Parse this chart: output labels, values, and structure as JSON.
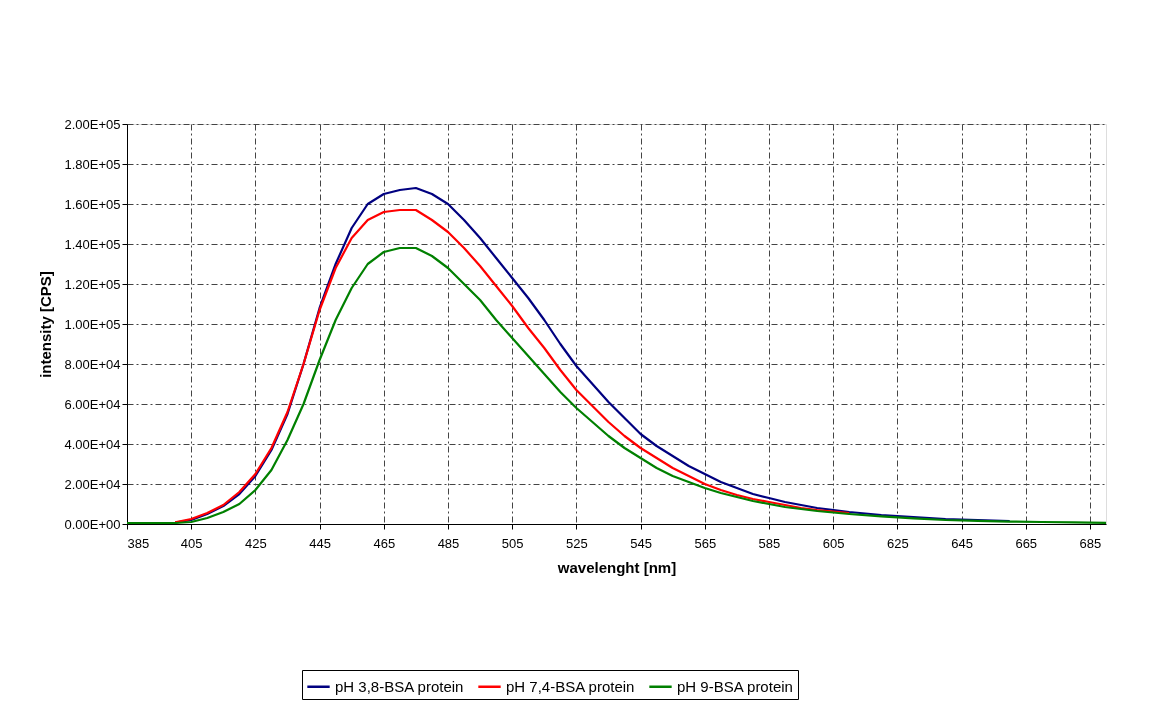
{
  "chart_data": {
    "type": "line",
    "xlabel": "wavelenght [nm]",
    "ylabel": "intensity [CPS]",
    "xlim": [
      385,
      690
    ],
    "xticks": [
      385,
      405,
      425,
      445,
      465,
      485,
      505,
      525,
      545,
      565,
      585,
      605,
      625,
      645,
      665,
      685
    ],
    "ylim": [
      0,
      200000
    ],
    "yticks": [
      {
        "value": 0,
        "label": "0.00E+00"
      },
      {
        "value": 20000,
        "label": "2.00E+04"
      },
      {
        "value": 40000,
        "label": "4.00E+04"
      },
      {
        "value": 60000,
        "label": "6.00E+04"
      },
      {
        "value": 80000,
        "label": "8.00E+04"
      },
      {
        "value": 100000,
        "label": "1.00E+05"
      },
      {
        "value": 120000,
        "label": "1.20E+05"
      },
      {
        "value": 140000,
        "label": "1.40E+05"
      },
      {
        "value": 160000,
        "label": "1.60E+05"
      },
      {
        "value": 180000,
        "label": "1.80E+05"
      },
      {
        "value": 200000,
        "label": "2.00E+05"
      }
    ],
    "grid": true,
    "legend": "bottom",
    "marker": "none",
    "line_style": "solid",
    "x": [
      385,
      390,
      395,
      400,
      405,
      410,
      415,
      420,
      425,
      430,
      435,
      440,
      445,
      450,
      455,
      460,
      465,
      470,
      475,
      480,
      485,
      490,
      495,
      500,
      505,
      510,
      515,
      520,
      525,
      530,
      535,
      540,
      545,
      550,
      555,
      560,
      565,
      570,
      575,
      580,
      585,
      590,
      595,
      600,
      610,
      620,
      630,
      640,
      650,
      660,
      670,
      680,
      690
    ],
    "series": [
      {
        "name": "pH 3,8-BSA protein",
        "color": "#000080",
        "values": [
          null,
          null,
          null,
          700,
          2000,
          5000,
          9000,
          15000,
          24000,
          37000,
          55000,
          80000,
          108000,
          130000,
          148000,
          160000,
          165000,
          167000,
          168000,
          165000,
          160000,
          152000,
          143000,
          133000,
          123000,
          113000,
          102000,
          90000,
          79000,
          70000,
          61000,
          53000,
          45000,
          39000,
          34000,
          29000,
          25000,
          21000,
          18000,
          15000,
          13000,
          11000,
          9500,
          8000,
          6000,
          4500,
          3500,
          2500,
          2000,
          1500,
          null,
          null,
          null
        ]
      },
      {
        "name": "pH 7,4-BSA protein",
        "color": "#ff0000",
        "values": [
          null,
          null,
          null,
          800,
          2500,
          5500,
          9500,
          16000,
          25000,
          38000,
          56000,
          80000,
          107000,
          128000,
          143000,
          152000,
          156000,
          157000,
          157000,
          152000,
          146000,
          138000,
          129000,
          119000,
          109000,
          98000,
          88000,
          77000,
          67000,
          59000,
          51000,
          44000,
          38000,
          33000,
          28000,
          24000,
          20000,
          17000,
          14500,
          12500,
          11000,
          9500,
          8000,
          7000,
          5500,
          null,
          null,
          null,
          null,
          null,
          null,
          null,
          null
        ]
      },
      {
        "name": "pH 9-BSA protein",
        "color": "#008000",
        "values": [
          500,
          500,
          500,
          500,
          1000,
          3000,
          6000,
          10000,
          17000,
          27000,
          42000,
          60000,
          82000,
          102000,
          118000,
          130000,
          136000,
          138000,
          138000,
          134000,
          128000,
          120000,
          112000,
          102000,
          93000,
          84000,
          75000,
          66000,
          58000,
          51000,
          44000,
          38000,
          33000,
          28000,
          24000,
          21000,
          18000,
          15500,
          13500,
          11500,
          10000,
          8500,
          7500,
          6500,
          5000,
          3800,
          2800,
          2000,
          1600,
          1200,
          1000,
          800,
          600
        ]
      }
    ]
  }
}
